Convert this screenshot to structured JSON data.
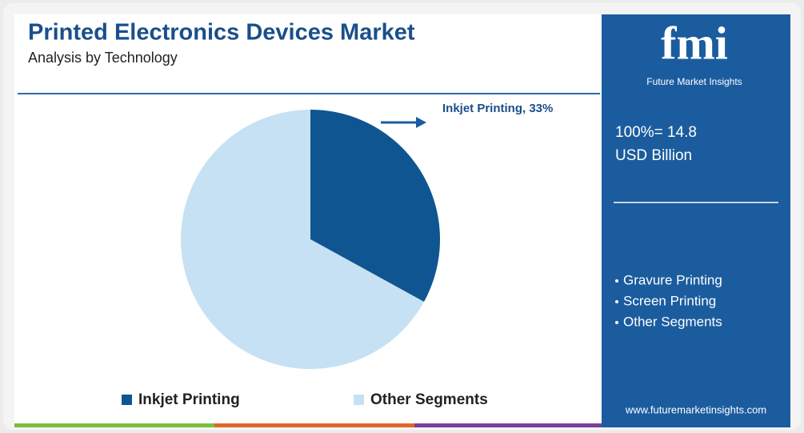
{
  "chart_data": {
    "type": "pie",
    "title": "Printed Electronics Devices Market",
    "subtitle": "Analysis by Technology",
    "categories": [
      "Inkjet Printing",
      "Other Segments"
    ],
    "values": [
      33,
      67
    ],
    "value_labels": [
      "Inkjet Printing, 33%",
      null
    ],
    "colors": [
      "#0f5591",
      "#c6e1f3"
    ],
    "total_label": "100%= 14.8",
    "total_unit": "USD Billion",
    "other_segments": [
      "Gravure Printing",
      "Screen Printing",
      "Other Segments"
    ],
    "brand": {
      "logo": "fmi",
      "name": "Future Market Insights",
      "website": "www.futuremarketinsights.com"
    }
  }
}
